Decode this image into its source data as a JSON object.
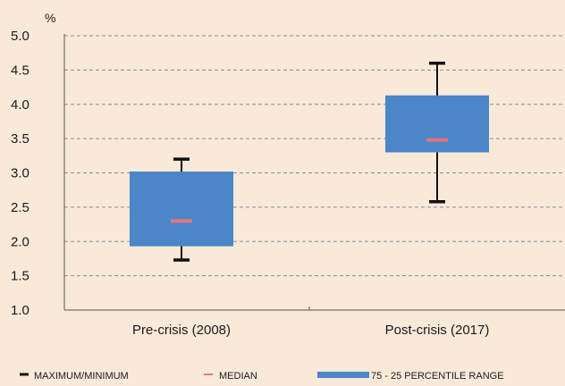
{
  "chart_data": {
    "type": "box",
    "y_unit": "%",
    "ylim": [
      1.0,
      5.0
    ],
    "yticks": [
      "1.0",
      "1.5",
      "2.0",
      "2.5",
      "3.0",
      "3.5",
      "4.0",
      "4.5",
      "5.0"
    ],
    "grid": true,
    "categories": [
      "Pre-crisis (2008)",
      "Post-crisis (2017)"
    ],
    "boxes": [
      {
        "category": "Pre-crisis (2008)",
        "max": 3.2,
        "q3": 3.02,
        "median": 2.3,
        "q1": 1.93,
        "min": 1.73
      },
      {
        "category": "Post-crisis (2017)",
        "max": 4.6,
        "q3": 4.13,
        "median": 3.48,
        "q1": 3.3,
        "min": 2.58
      }
    ],
    "legend": [
      {
        "key": "minmax",
        "label": "MAXIMUM/MINIMUM"
      },
      {
        "key": "median",
        "label": "MEDIAN"
      },
      {
        "key": "range",
        "label": "75 - 25 PERCENTILE RANGE"
      }
    ],
    "legend_position": "bottom",
    "colors": {
      "background": "#f9e9d9",
      "box": "#4a86c8",
      "median": "#e8727e",
      "whisker": "#111111",
      "grid": "#8a8a8a",
      "axis": "#555555",
      "text": "#1a1a1a"
    }
  }
}
